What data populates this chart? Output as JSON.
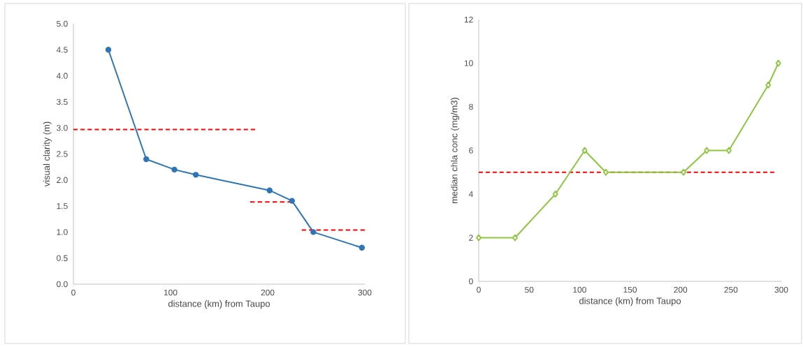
{
  "chart_data": [
    {
      "type": "line",
      "xlabel": "distance (km) from Taupo",
      "ylabel": "visual clarity (m)",
      "xlim": [
        0,
        300
      ],
      "xticks": [
        0,
        100,
        200,
        300
      ],
      "ylim": [
        0,
        5
      ],
      "yticks": [
        {
          "value": 0,
          "label": "0.0"
        },
        {
          "value": 0.5,
          "label": "0.5"
        },
        {
          "value": 1,
          "label": "1.0"
        },
        {
          "value": 1.5,
          "label": "1.5"
        },
        {
          "value": 2,
          "label": "2.0"
        },
        {
          "value": 2.5,
          "label": "2.5"
        },
        {
          "value": 3,
          "label": "3.0"
        },
        {
          "value": 3.5,
          "label": "3.5"
        },
        {
          "value": 4,
          "label": "4.0"
        },
        {
          "value": 4.5,
          "label": "4.5"
        },
        {
          "value": 5,
          "label": "5.0"
        }
      ],
      "series": [
        {
          "color": "#2e75b6",
          "marker": "circle",
          "x": [
            36,
            75,
            104,
            126,
            202,
            225,
            247,
            297
          ],
          "values": [
            4.5,
            2.4,
            2.2,
            2.1,
            1.8,
            1.6,
            1.0,
            0.7
          ]
        },
        {
          "color": "#ff0000",
          "marker": "none",
          "line_style": "dashed",
          "x": [
            0,
            187
          ],
          "values": [
            2.97,
            2.97
          ]
        },
        {
          "color": "#ff0000",
          "marker": "none",
          "line_style": "dashed",
          "x": [
            182,
            225
          ],
          "values": [
            1.58,
            1.58
          ]
        },
        {
          "color": "#ff0000",
          "marker": "none",
          "line_style": "dashed",
          "x": [
            235,
            300
          ],
          "values": [
            1.04,
            1.04
          ]
        }
      ]
    },
    {
      "type": "line",
      "xlabel": "distance (km) from Taupo",
      "ylabel": "median chla conc (mg/m3)",
      "xlim": [
        0,
        300
      ],
      "xticks": [
        0,
        50,
        100,
        150,
        200,
        250,
        300
      ],
      "ylim": [
        0,
        12
      ],
      "yticks": [
        0,
        2,
        4,
        6,
        8,
        10,
        12
      ],
      "series": [
        {
          "color": "#ff0000",
          "marker": "none",
          "line_style": "dashed",
          "x": [
            0,
            293
          ],
          "values": [
            5,
            5
          ]
        },
        {
          "color": "#8dc63f",
          "marker": "diamond",
          "x": [
            0,
            36,
            76,
            105,
            126,
            203,
            226,
            248,
            287,
            297
          ],
          "values": [
            2,
            2,
            4,
            6,
            5,
            5,
            6,
            6,
            9,
            10
          ]
        }
      ]
    }
  ]
}
